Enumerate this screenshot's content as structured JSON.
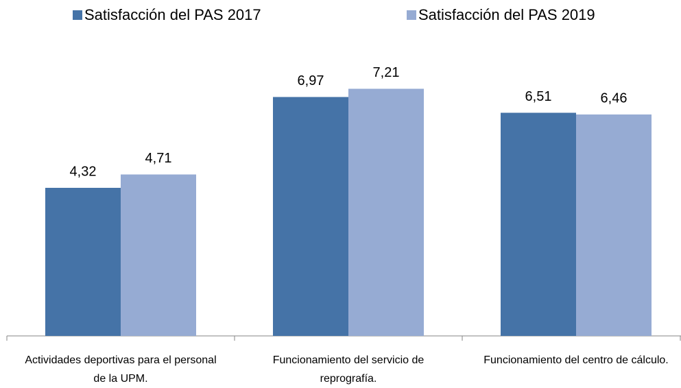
{
  "chart_data": {
    "type": "bar",
    "categories": [
      "Actividades deportivas para el personal de la UPM.",
      "Funcionamiento del servicio de reprografía.",
      "Funcionamiento del centro de cálculo."
    ],
    "series": [
      {
        "name": "Satisfacción del PAS 2017",
        "color": "#4573a7",
        "values": [
          4.32,
          6.97,
          6.51
        ],
        "value_labels": [
          "4,32",
          "6,97",
          "6,51"
        ]
      },
      {
        "name": "Satisfacción del PAS 2019",
        "color": "#96abd3",
        "values": [
          4.71,
          7.21,
          6.46
        ],
        "value_labels": [
          "4,71",
          "7,21",
          "6,46"
        ]
      }
    ],
    "ylim": [
      0,
      9
    ],
    "legend": "top"
  }
}
